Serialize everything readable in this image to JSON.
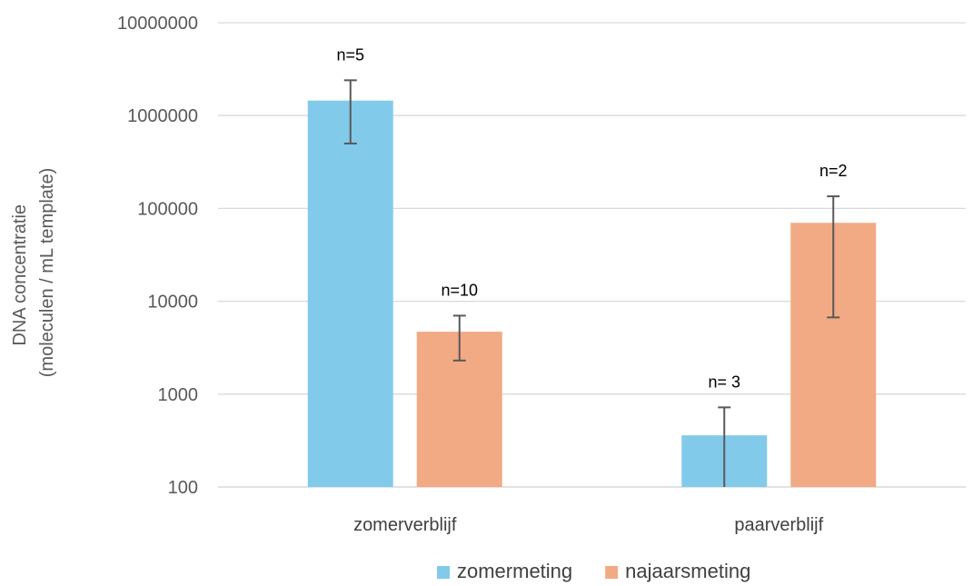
{
  "chart_data": {
    "type": "bar",
    "title": "",
    "xlabel": "",
    "ylabel_lines": [
      "DNA concentratie",
      "(moleculen / mL template)"
    ],
    "yscale": "log",
    "ylim": [
      100,
      10000000
    ],
    "yticks": [
      100,
      1000,
      10000,
      100000,
      1000000,
      10000000
    ],
    "ytick_labels": [
      "100",
      "1000",
      "10000",
      "100000",
      "1000000",
      "10000000"
    ],
    "grid": true,
    "legend_position": "bottom",
    "categories": [
      "zomerverblijf",
      "paarverblijf"
    ],
    "series": [
      {
        "name": "zomermeting",
        "color": "#82CAEA",
        "values": [
          1450000,
          360
        ],
        "err_low": [
          500000,
          100
        ],
        "err_high": [
          2400000,
          720
        ],
        "n_labels": [
          "n=5",
          "n= 3"
        ]
      },
      {
        "name": "najaarsmeting",
        "color": "#F2AA84",
        "values": [
          4700,
          70000
        ],
        "err_low": [
          2300,
          6700
        ],
        "err_high": [
          7000,
          135000
        ],
        "n_labels": [
          "n=10",
          "n=2"
        ]
      }
    ]
  }
}
